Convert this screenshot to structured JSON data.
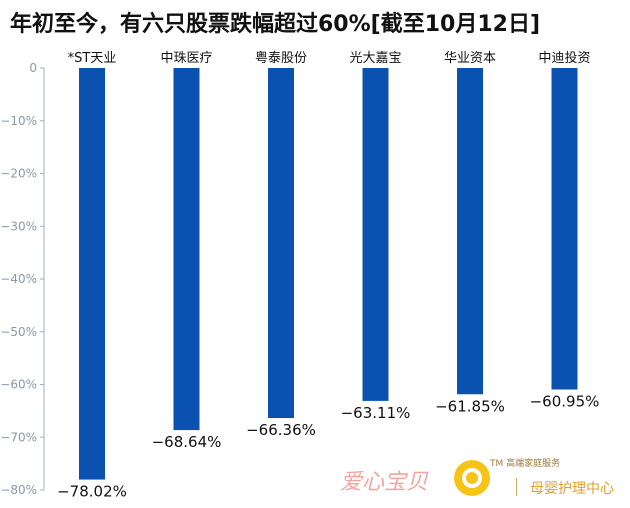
{
  "title": "年初至今，有六只股票跌幅超过60%[截至10月12日]",
  "colors": {
    "bar": "#0b52b0",
    "axis": "#9fb0c3",
    "tick_text": "#8a9aa8",
    "label_text": "#111111"
  },
  "chart_data": {
    "type": "bar",
    "categories": [
      "*ST天业",
      "中珠医疗",
      "粤泰股份",
      "光大嘉宝",
      "华业资本",
      "中迪投资"
    ],
    "values": [
      -78.02,
      -68.64,
      -66.36,
      -63.11,
      -61.85,
      -60.95
    ],
    "data_labels": [
      "−78.02%",
      "−68.64%",
      "−66.36%",
      "−63.11%",
      "−61.85%",
      "−60.95%"
    ],
    "ylim": [
      -80,
      0
    ],
    "yticks": [
      0,
      -10,
      -20,
      -30,
      -40,
      -50,
      -60,
      -70,
      -80
    ],
    "ytick_labels": [
      "0",
      "−10%",
      "−20%",
      "−30%",
      "−40%",
      "−50%",
      "−60%",
      "−70%",
      "−80%"
    ],
    "xlabel": "",
    "ylabel": "",
    "grid": false,
    "category_labels_position": "top"
  },
  "watermark": {
    "brand": "爱心宝贝",
    "tagline": "TM 高端家庭服务",
    "center": "母婴护理中心",
    "logo_icon": "sun-logo-icon"
  }
}
